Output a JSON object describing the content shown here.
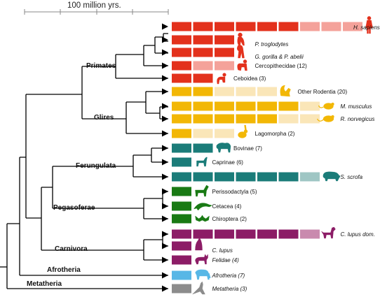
{
  "scale_bar": {
    "label": "100 million yrs."
  },
  "clades": [
    {
      "id": "primates",
      "label": "Primates"
    },
    {
      "id": "glires",
      "label": "Glires"
    },
    {
      "id": "ferungulata",
      "label": "Ferungulata"
    },
    {
      "id": "pegasoferae",
      "label": "Pegasoferae"
    },
    {
      "id": "carnivora",
      "label": "Carnivora"
    },
    {
      "id": "afrotheria",
      "label": "Afrotheria"
    },
    {
      "id": "metatheria",
      "label": "Metatheria"
    }
  ],
  "colors": {
    "primates": "#e3311c",
    "primates_light": "#f4a29a",
    "glires": "#f2b705",
    "glires_light": "#fae6b8",
    "ferungulata": "#1b7c79",
    "ferungulata_light": "#9fc6c4",
    "pegasoferae": "#197a14",
    "carnivora": "#8c1c66",
    "carnivora_light": "#c98aae",
    "afrotheria": "#58b7e6",
    "metatheria": "#8c8c8c",
    "tree": "#000000"
  },
  "taxa": [
    {
      "id": "h-sapiens",
      "label": "H. sapiens",
      "italic": true,
      "group": "primates",
      "icon": "human-icon",
      "blocks": [
        "d",
        "d",
        "d",
        "d",
        "d",
        "d",
        "l",
        "l",
        "l"
      ]
    },
    {
      "id": "p-troglodytes",
      "label": "P. troglodytes",
      "italic": true,
      "group": "primates",
      "icon": "chimpanzee-icon",
      "blocks": [
        "d",
        "d",
        "d"
      ]
    },
    {
      "id": "gorilla-abelii",
      "label": "G. gorilla & P. abelii",
      "italic": true,
      "group": "primates",
      "icon": "gorilla-icon",
      "blocks": [
        "d",
        "d",
        "d"
      ]
    },
    {
      "id": "cercopithecidae",
      "label": "Cercopithecidae (12)",
      "italic": false,
      "group": "primates",
      "icon": "monkey-icon",
      "blocks": [
        "d",
        "l",
        "l"
      ]
    },
    {
      "id": "ceboidea",
      "label": "Ceboidea (3)",
      "italic": false,
      "group": "primates",
      "icon": "marmoset-icon",
      "blocks": [
        "d",
        "d"
      ]
    },
    {
      "id": "other-rodentia",
      "label": "Other Rodentia (20)",
      "italic": false,
      "group": "glires",
      "icon": "squirrel-icon",
      "blocks": [
        "d",
        "d",
        "l",
        "l",
        "l"
      ]
    },
    {
      "id": "m-musculus",
      "label": "M. musculus",
      "italic": true,
      "group": "glires",
      "icon": "mouse-icon",
      "blocks": [
        "d",
        "d",
        "d",
        "d",
        "d",
        "d",
        "l"
      ]
    },
    {
      "id": "r-norvegicus",
      "label": "R. norvegicus",
      "italic": true,
      "group": "glires",
      "icon": "rat-icon",
      "blocks": [
        "d",
        "d",
        "d",
        "d",
        "d",
        "l",
        "l"
      ]
    },
    {
      "id": "lagomorpha",
      "label": "Lagomorpha (2)",
      "italic": false,
      "group": "glires",
      "icon": "rabbit-icon",
      "blocks": [
        "d",
        "l",
        "l"
      ]
    },
    {
      "id": "bovinae",
      "label": "Bovinae (7)",
      "italic": false,
      "group": "ferungulata",
      "icon": "bison-icon",
      "blocks": [
        "d",
        "d"
      ]
    },
    {
      "id": "caprinae",
      "label": "Caprinae (6)",
      "italic": false,
      "group": "ferungulata",
      "icon": "goat-icon",
      "blocks": [
        "d"
      ]
    },
    {
      "id": "s-scrofa",
      "label": "S. scrofa",
      "italic": true,
      "group": "ferungulata",
      "icon": "pig-icon",
      "blocks": [
        "d",
        "d",
        "d",
        "d",
        "d",
        "d",
        "l"
      ]
    },
    {
      "id": "perissodactyla",
      "label": "Perissodactyla (5)",
      "italic": false,
      "group": "pegasoferae",
      "icon": "horse-icon",
      "blocks": [
        "d"
      ]
    },
    {
      "id": "cetacea",
      "label": "Cetacea (4)",
      "italic": false,
      "group": "pegasoferae",
      "icon": "dolphin-icon",
      "blocks": [
        "d"
      ]
    },
    {
      "id": "chiroptera",
      "label": "Chiroptera (2)",
      "italic": false,
      "group": "pegasoferae",
      "icon": "bat-icon",
      "blocks": [
        "d"
      ]
    },
    {
      "id": "c-lupus-dom",
      "label": "C. lupus dom.",
      "italic": true,
      "group": "carnivora",
      "icon": "dog-icon",
      "blocks": [
        "d",
        "d",
        "d",
        "d",
        "d",
        "d",
        "l"
      ]
    },
    {
      "id": "c-lupus",
      "label": "C. lupus",
      "italic": true,
      "group": "carnivora",
      "icon": "wolf-icon",
      "blocks": [
        "d"
      ]
    },
    {
      "id": "felidae",
      "label": "Felidae (4)",
      "italic": true,
      "group": "carnivora",
      "icon": "cat-icon",
      "blocks": [
        "d"
      ]
    },
    {
      "id": "afrotheria-7",
      "label": "Afrotheria (7)",
      "italic": true,
      "group": "afrotheria",
      "icon": "elephant-icon",
      "blocks": [
        "d"
      ]
    },
    {
      "id": "metatheria-3",
      "label": "Metatheria (3)",
      "italic": true,
      "group": "metatheria",
      "icon": "kangaroo-icon",
      "blocks": [
        "d"
      ]
    }
  ]
}
